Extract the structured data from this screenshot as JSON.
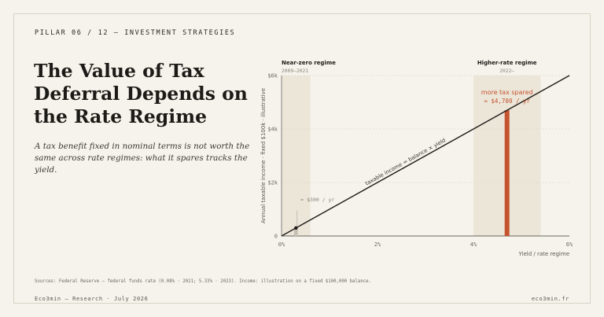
{
  "header": {
    "kicker": "PILLAR 06 / 12 — INVESTMENT STRATEGIES"
  },
  "title_lines": [
    "The Value of Tax",
    "Deferral Depends on",
    "the Rate Regime"
  ],
  "subtitle": "A tax benefit fixed in nominal terms is not worth the same across rate regimes: what it spares tracks the yield.",
  "sources": "Sources: Federal Reserve — federal funds rate (0.08% · 2021; 5.33% · 2023). Income: illustration on a fixed $100,000 balance.",
  "footer": {
    "left": "Eco3min — Research · July 2026",
    "right": "eco3min.fr"
  },
  "colors": {
    "background": "#f6f3ec",
    "band": "#ece6d9",
    "line": "#1d1b17",
    "highlight": "#c4532e",
    "muted": "#8a857b"
  },
  "chart_data": {
    "type": "line",
    "xlabel": "Yield / rate regime",
    "ylabel": "Annual taxable income · fixed $100k · illustrative",
    "xlim": [
      0,
      6
    ],
    "ylim": [
      0,
      6000
    ],
    "x_ticks": [
      "0%",
      "2%",
      "4%",
      "6%"
    ],
    "y_ticks": [
      "0",
      "$2k",
      "$4k",
      "$6k"
    ],
    "grid": "horizontal dashed",
    "series": [
      {
        "name": "taxable income = balance × yield",
        "x": [
          0,
          6
        ],
        "y": [
          0,
          6000
        ]
      }
    ],
    "regimes": [
      {
        "label": "Near-zero regime",
        "period": "2009–2021",
        "x_range": [
          0,
          0.6
        ]
      },
      {
        "label": "Higher-rate regime",
        "period": "2022–",
        "x_range": [
          4.0,
          5.4
        ]
      }
    ],
    "bars": [
      {
        "x": 0.3,
        "y": 300,
        "label": "≈ $300 / yr",
        "color": "#c7c1b5"
      },
      {
        "x": 4.7,
        "y": 4700,
        "label_top": "more tax spared",
        "label": "≈ $4,700 / yr",
        "color": "#c4532e"
      }
    ]
  }
}
